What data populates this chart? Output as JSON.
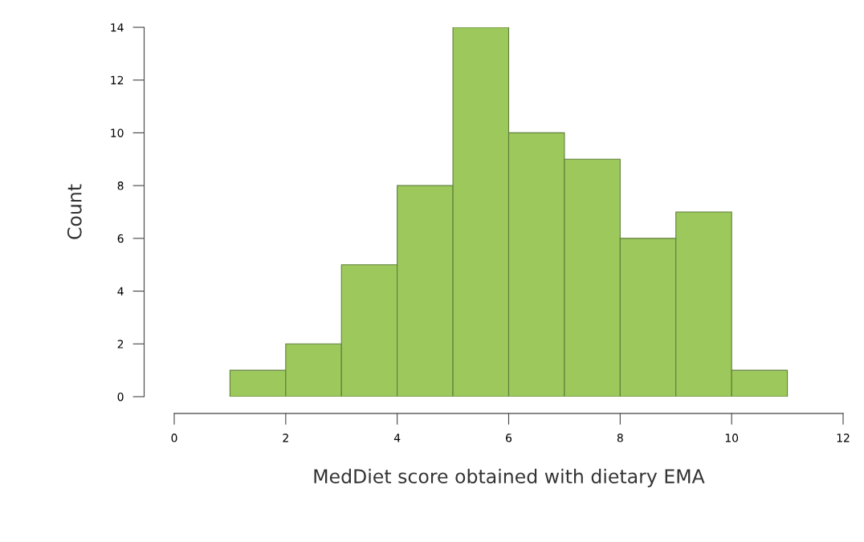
{
  "chart_data": {
    "type": "histogram",
    "xlabel": "MedDiet score obtained with dietary EMA",
    "ylabel": "Count",
    "bins": [
      1,
      2,
      3,
      4,
      5,
      6,
      7,
      8,
      9,
      10,
      11
    ],
    "values": [
      1,
      2,
      5,
      8,
      14,
      10,
      9,
      6,
      7,
      1
    ],
    "color": "#9dc95c",
    "xlim": [
      0,
      12
    ],
    "xticks": [
      0,
      2,
      4,
      6,
      8,
      10,
      12
    ],
    "ylim": [
      0,
      14
    ],
    "yticks": [
      0,
      2,
      4,
      6,
      8,
      10,
      12,
      14
    ],
    "grid": false,
    "legend": false
  }
}
